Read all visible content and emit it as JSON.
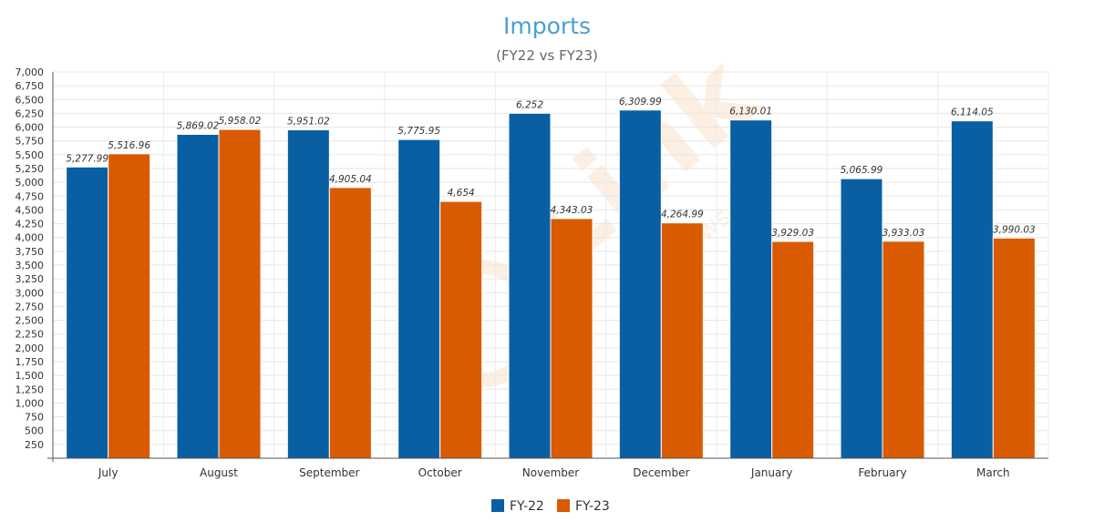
{
  "chart_data": {
    "type": "bar",
    "title": "Imports",
    "subtitle": "(FY22 vs FY23)",
    "categories": [
      "July",
      "August",
      "September",
      "October",
      "November",
      "December",
      "January",
      "February",
      "March"
    ],
    "series": [
      {
        "name": "FY-22",
        "color": "#0a5fa3",
        "values": [
          5277.99,
          5869.02,
          5951.02,
          5775.95,
          6252,
          6309.99,
          6130.01,
          5065.99,
          6114.05
        ],
        "labels": [
          "5,277.99",
          "5,869.02",
          "5,951.02",
          "5,775.95",
          "6,252",
          "6,309.99",
          "6,130.01",
          "5,065.99",
          "6,114.05"
        ]
      },
      {
        "name": "FY-23",
        "color": "#d95a00",
        "values": [
          5516.96,
          5958.02,
          4905.04,
          4654,
          4343.03,
          4264.99,
          3929.03,
          3933.03,
          3990.03
        ],
        "labels": [
          "5,516.96",
          "5,958.02",
          "4,905.04",
          "4,654",
          "4,343.03",
          "4,264.99",
          "3,929.03",
          "3,933.03",
          "3,990.03"
        ]
      }
    ],
    "ylim": [
      0,
      7000
    ],
    "yticks": [
      250,
      500,
      750,
      1000,
      1250,
      1500,
      1750,
      2000,
      2250,
      2500,
      2750,
      3000,
      3250,
      3500,
      3750,
      4000,
      4250,
      4500,
      4750,
      5000,
      5250,
      5500,
      5750,
      6000,
      6250,
      6500,
      6750,
      7000
    ],
    "ytick_labels": [
      "250",
      "500",
      "750",
      "1,000",
      "1,250",
      "1,500",
      "1,750",
      "2,000",
      "2,250",
      "2,500",
      "2,750",
      "3,000",
      "3,250",
      "3,500",
      "3,750",
      "4,000",
      "4,250",
      "4,500",
      "4,750",
      "5,000",
      "5,250",
      "5,500",
      "5,750",
      "6,000",
      "6,250",
      "6,500",
      "6,750",
      "7,000"
    ],
    "grid": true,
    "legend": "bottom-center",
    "title_color": "#4a9fd0",
    "subtitle_color": "#666666"
  },
  "watermark": {
    "text": "Link",
    "subtext": "News",
    "color": "#f3a35a"
  }
}
